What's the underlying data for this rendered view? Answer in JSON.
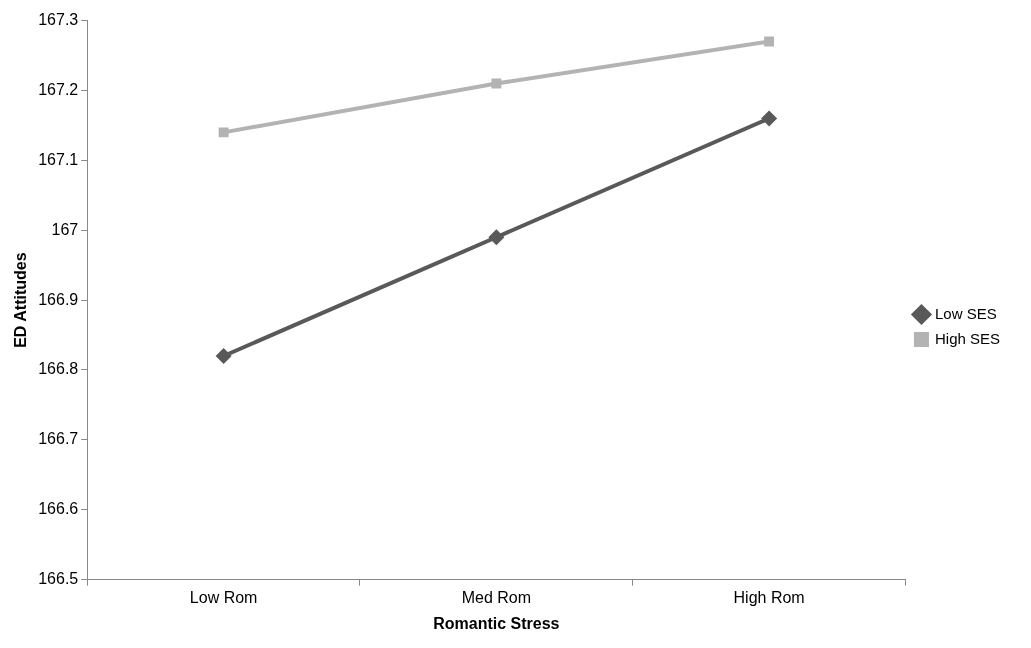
{
  "chart_data": {
    "type": "line",
    "xlabel": "Romantic Stress",
    "ylabel": "ED Attitudes",
    "categories": [
      "Low Rom",
      "Med Rom",
      "High Rom"
    ],
    "series": [
      {
        "name": "Low SES",
        "color": "#595959",
        "marker": "diamond",
        "values": [
          166.82,
          166.99,
          167.16
        ]
      },
      {
        "name": "High SES",
        "color": "#b3b3b3",
        "marker": "square",
        "values": [
          167.14,
          167.21,
          167.27
        ]
      }
    ],
    "ylim": [
      166.5,
      167.3
    ],
    "yticks": [
      166.5,
      166.6,
      166.7,
      166.8,
      166.9,
      167,
      167.1,
      167.2,
      167.3
    ],
    "grid": false,
    "legend": "right",
    "line_style": "solid"
  }
}
